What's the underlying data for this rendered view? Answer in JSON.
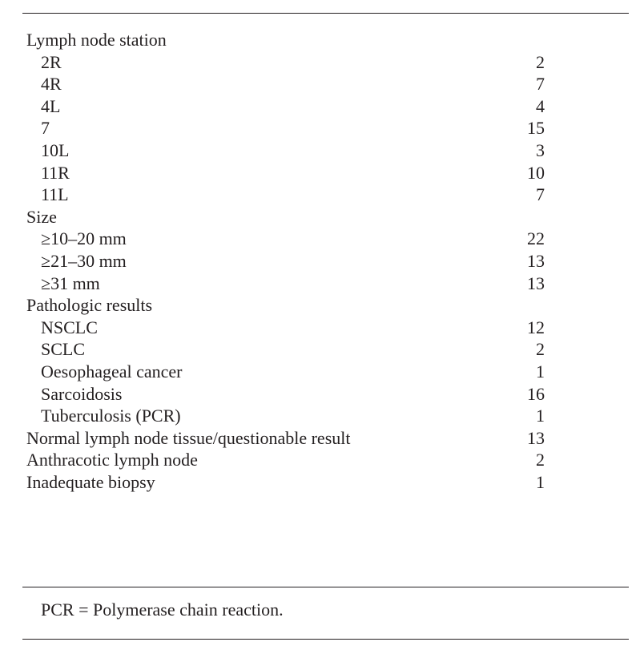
{
  "table": {
    "rows": [
      {
        "label": "Lymph node station",
        "value": "",
        "indent": false
      },
      {
        "label": "2R",
        "value": "2",
        "indent": true
      },
      {
        "label": "4R",
        "value": "7",
        "indent": true
      },
      {
        "label": "4L",
        "value": "4",
        "indent": true
      },
      {
        "label": "7",
        "value": "15",
        "indent": true
      },
      {
        "label": "10L",
        "value": "3",
        "indent": true
      },
      {
        "label": "11R",
        "value": "10",
        "indent": true
      },
      {
        "label": "11L",
        "value": "7",
        "indent": true
      },
      {
        "label": "Size",
        "value": "",
        "indent": false
      },
      {
        "label": "≥10–20 mm",
        "value": "22",
        "indent": true
      },
      {
        "label": "≥21–30 mm",
        "value": "13",
        "indent": true
      },
      {
        "label": "≥31 mm",
        "value": "13",
        "indent": true
      },
      {
        "label": "Pathologic results",
        "value": "",
        "indent": false
      },
      {
        "label": "NSCLC",
        "value": "12",
        "indent": true
      },
      {
        "label": "SCLC",
        "value": "2",
        "indent": true
      },
      {
        "label": "Oesophageal cancer",
        "value": "1",
        "indent": true
      },
      {
        "label": "Sarcoidosis",
        "value": "16",
        "indent": true
      },
      {
        "label": "Tuberculosis (PCR)",
        "value": "1",
        "indent": true
      },
      {
        "label": "Normal lymph node tissue/questionable result",
        "value": "13",
        "indent": false
      },
      {
        "label": "Anthracotic lymph node",
        "value": "2",
        "indent": false
      },
      {
        "label": "Inadequate biopsy",
        "value": "1",
        "indent": false
      }
    ],
    "footnote": "PCR = Polymerase chain reaction."
  }
}
